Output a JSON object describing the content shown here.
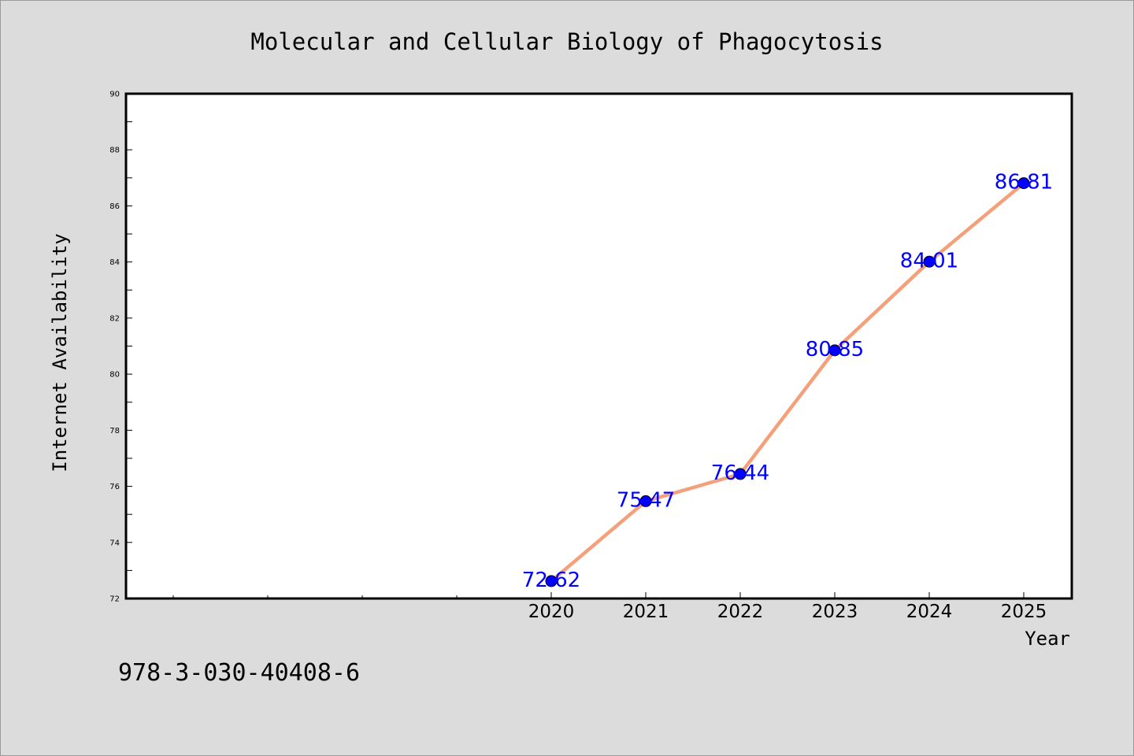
{
  "chart_data": {
    "type": "line",
    "title": "Molecular and Cellular Biology of Phagocytosis",
    "xlabel": "Year",
    "ylabel": "Internet Availability",
    "x": [
      "2020",
      "2021",
      "2022",
      "2023",
      "2024",
      "2025"
    ],
    "values": [
      72.62,
      75.47,
      76.44,
      80.85,
      84.01,
      86.81
    ],
    "value_labels": [
      "72.62",
      "75.47",
      "76.44",
      "80.85",
      "84.01",
      "86.81"
    ],
    "ylim": [
      72,
      90
    ],
    "yticks": [
      "72",
      "74",
      "76",
      "78",
      "80",
      "82",
      "84",
      "86",
      "88",
      "90"
    ],
    "grid": false,
    "legend": "none",
    "colors": {
      "line": "#f4a07a",
      "marker": "#0000ff",
      "label": "#0000ff",
      "background": "#dcdcdc",
      "plot_background": "#ffffff"
    }
  },
  "footer": {
    "isbn": "978-3-030-40408-6"
  }
}
